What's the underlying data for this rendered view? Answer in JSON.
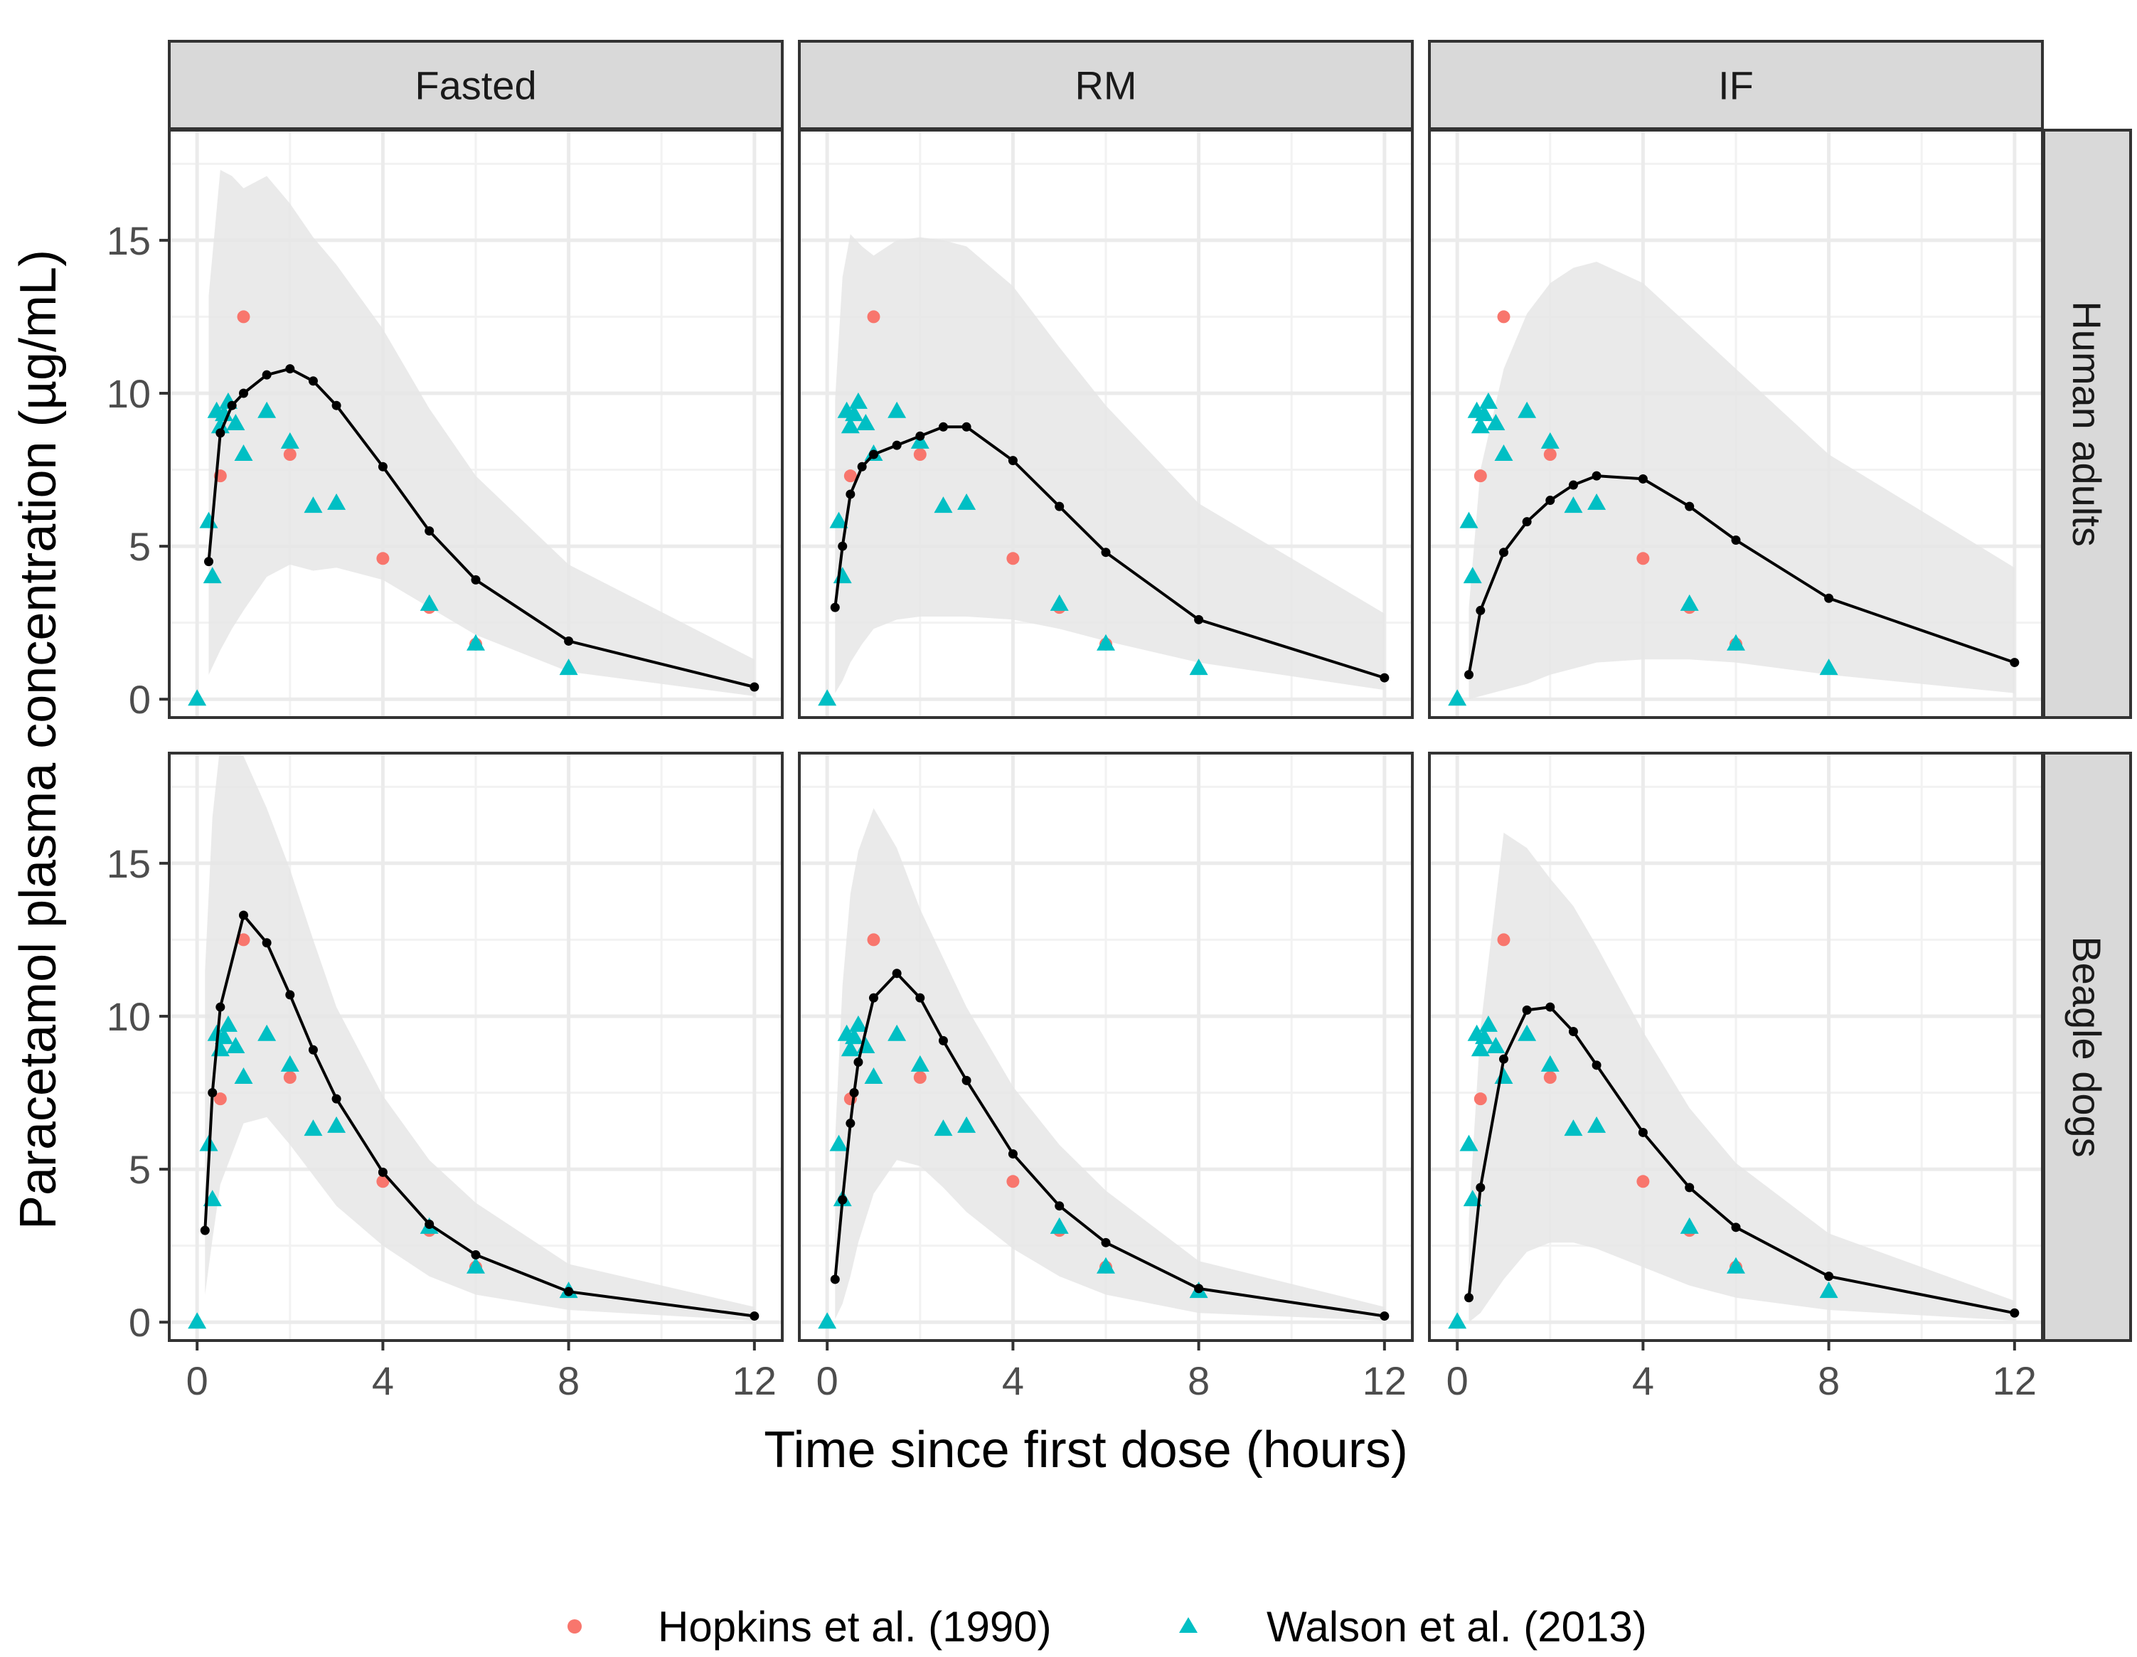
{
  "chart_data": {
    "type": "line",
    "xlabel": "Time since first dose (hours)",
    "ylabel": "Paracetamol plasma concentration (µg/mL)",
    "xlim": [
      -0.6,
      12.6
    ],
    "ylim": [
      -0.6,
      18.6
    ],
    "x_ticks": [
      0,
      4,
      8,
      12
    ],
    "y_ticks": [
      0,
      5,
      10,
      15
    ],
    "grid": true,
    "columns": [
      "Fasted",
      "RM",
      "IF"
    ],
    "rows": [
      "Human adults",
      "Beagle dogs"
    ],
    "legend": {
      "position": "bottom",
      "entries": [
        {
          "label": "Hopkins et al. (1990)",
          "shape": "circle",
          "color": "#F8766D"
        },
        {
          "label": "Walson et al. (2013)",
          "shape": "triangle",
          "color": "#00BFC4"
        }
      ]
    },
    "colors": {
      "prediction_line": "#000000",
      "interval_band": "#e6e6e6",
      "strip_fill": "#d9d9d9"
    },
    "observed": {
      "hopkins": {
        "x": [
          0.5,
          1,
          2,
          4,
          5,
          6
        ],
        "y": [
          7.3,
          12.5,
          8.0,
          4.6,
          3.0,
          1.8
        ]
      },
      "walson": {
        "x": [
          0,
          0.25,
          0.33,
          0.42,
          0.5,
          0.58,
          0.67,
          0.83,
          1.0,
          1.5,
          2.0,
          2.5,
          3.0,
          5.0,
          6.0,
          8.0
        ],
        "y": [
          0,
          5.8,
          4.0,
          9.4,
          8.9,
          9.3,
          9.7,
          9.0,
          8.0,
          9.4,
          8.4,
          6.3,
          6.4,
          3.1,
          1.8,
          1.0
        ]
      }
    },
    "panels": [
      {
        "row": "Human adults",
        "col": "Fasted",
        "x": [
          0.25,
          0.5,
          0.75,
          1,
          1.5,
          2,
          2.5,
          3,
          4,
          5,
          6,
          8,
          12
        ],
        "y": [
          4.5,
          8.7,
          9.6,
          10.0,
          10.6,
          10.8,
          10.4,
          9.6,
          7.6,
          5.5,
          3.9,
          1.9,
          0.4
        ],
        "band_x": [
          0.25,
          0.5,
          0.75,
          1,
          1.5,
          2,
          2.5,
          3,
          4,
          5,
          6,
          8,
          12
        ],
        "band_low": [
          0.8,
          1.6,
          2.3,
          2.9,
          4.0,
          4.4,
          4.2,
          4.3,
          3.9,
          3.0,
          2.1,
          0.9,
          0.1
        ],
        "band_high": [
          13.2,
          17.3,
          17.1,
          16.7,
          17.1,
          16.2,
          15.1,
          14.2,
          12.1,
          9.5,
          7.3,
          4.4,
          1.3
        ]
      },
      {
        "row": "Human adults",
        "col": "RM",
        "x": [
          0.17,
          0.33,
          0.5,
          0.75,
          1,
          1.5,
          2,
          2.5,
          3,
          4,
          5,
          6,
          8,
          12
        ],
        "y": [
          3.0,
          5.0,
          6.7,
          7.6,
          8.0,
          8.3,
          8.6,
          8.9,
          8.9,
          7.8,
          6.3,
          4.8,
          2.6,
          0.7
        ],
        "band_x": [
          0.17,
          0.33,
          0.5,
          0.75,
          1,
          1.5,
          2,
          2.5,
          3,
          4,
          5,
          6,
          8,
          12
        ],
        "band_low": [
          0.2,
          0.6,
          1.2,
          1.8,
          2.3,
          2.6,
          2.7,
          2.7,
          2.7,
          2.6,
          2.3,
          1.9,
          1.2,
          0.3
        ],
        "band_high": [
          9.8,
          13.8,
          15.2,
          14.8,
          14.5,
          15.0,
          15.1,
          15.0,
          14.8,
          13.5,
          11.5,
          9.6,
          6.4,
          2.8
        ]
      },
      {
        "row": "Human adults",
        "col": "IF",
        "x": [
          0.25,
          0.5,
          1,
          1.5,
          2,
          2.5,
          3,
          4,
          5,
          6,
          8,
          12
        ],
        "y": [
          0.8,
          2.9,
          4.8,
          5.8,
          6.5,
          7.0,
          7.3,
          7.2,
          6.3,
          5.2,
          3.3,
          1.2
        ],
        "band_x": [
          0.25,
          0.5,
          1,
          1.5,
          2,
          2.5,
          3,
          4,
          5,
          6,
          8,
          12
        ],
        "band_low": [
          0.0,
          0.1,
          0.3,
          0.5,
          0.8,
          1.0,
          1.2,
          1.3,
          1.3,
          1.2,
          0.8,
          0.2
        ],
        "band_high": [
          3.0,
          7.5,
          10.8,
          12.6,
          13.6,
          14.1,
          14.3,
          13.6,
          12.2,
          10.8,
          8.0,
          4.3
        ]
      },
      {
        "row": "Beagle dogs",
        "col": "Fasted",
        "x": [
          0.17,
          0.33,
          0.5,
          1,
          1.5,
          2,
          2.5,
          3,
          4,
          5,
          6,
          8,
          12
        ],
        "y": [
          3.0,
          7.5,
          10.3,
          13.3,
          12.4,
          10.7,
          8.9,
          7.3,
          4.9,
          3.2,
          2.2,
          1.0,
          0.2
        ],
        "band_x": [
          0.17,
          0.33,
          0.5,
          1,
          1.5,
          2,
          2.5,
          3,
          4,
          5,
          6,
          8,
          12
        ],
        "band_low": [
          0.9,
          2.7,
          4.5,
          6.5,
          6.7,
          5.8,
          4.8,
          3.8,
          2.5,
          1.5,
          0.9,
          0.4,
          0.05
        ],
        "band_high": [
          11.5,
          16.5,
          18.9,
          18.5,
          16.8,
          14.8,
          12.5,
          10.3,
          7.4,
          5.3,
          3.9,
          1.9,
          0.5
        ]
      },
      {
        "row": "Beagle dogs",
        "col": "RM",
        "x": [
          0.17,
          0.33,
          0.5,
          0.58,
          0.67,
          1,
          1.5,
          2,
          2.5,
          3,
          4,
          5,
          6,
          8,
          12
        ],
        "y": [
          1.4,
          4.0,
          6.5,
          7.5,
          8.5,
          10.6,
          11.4,
          10.6,
          9.2,
          7.9,
          5.5,
          3.8,
          2.6,
          1.1,
          0.2
        ],
        "band_x": [
          0.17,
          0.33,
          0.5,
          0.67,
          1,
          1.5,
          2,
          2.5,
          3,
          4,
          5,
          6,
          8,
          12
        ],
        "band_low": [
          0.1,
          0.6,
          1.5,
          2.6,
          4.2,
          5.3,
          5.1,
          4.4,
          3.6,
          2.4,
          1.5,
          0.9,
          0.3,
          0.05
        ],
        "band_high": [
          6.0,
          11.0,
          14.0,
          15.4,
          16.8,
          15.5,
          13.5,
          11.9,
          10.3,
          7.7,
          5.8,
          4.3,
          2.0,
          0.5
        ]
      },
      {
        "row": "Beagle dogs",
        "col": "IF",
        "x": [
          0.25,
          0.5,
          1,
          1.5,
          2,
          2.5,
          3,
          4,
          5,
          6,
          8,
          12
        ],
        "y": [
          0.8,
          4.4,
          8.6,
          10.2,
          10.3,
          9.5,
          8.4,
          6.2,
          4.4,
          3.1,
          1.5,
          0.3
        ],
        "band_x": [
          0.25,
          0.5,
          1,
          1.5,
          2,
          2.5,
          3,
          4,
          5,
          6,
          8,
          12
        ],
        "band_low": [
          0.0,
          0.3,
          1.4,
          2.3,
          2.6,
          2.6,
          2.4,
          1.8,
          1.2,
          0.8,
          0.4,
          0.05
        ],
        "band_high": [
          3.4,
          9.6,
          16.0,
          15.5,
          14.5,
          13.6,
          12.3,
          9.5,
          7.0,
          5.2,
          2.9,
          0.7
        ]
      }
    ]
  }
}
